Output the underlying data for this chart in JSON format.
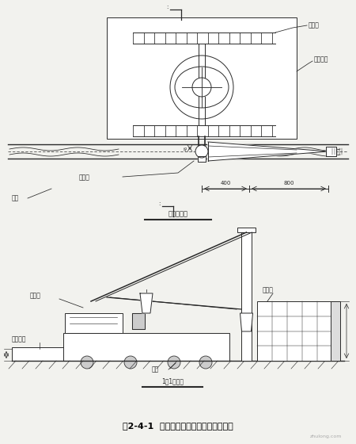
{
  "title": "图2-4-1  抓斗与套管钒机相对位置示意图",
  "bg_color": "#f2f2ee",
  "line_color": "#2a2a2a",
  "label_zuankongzhan": "锂控站",
  "label_zuoyepingtai": "作业平台",
  "label_taoguan": "套管机",
  "label_yuandi": "元地",
  "top_section_label": "平面示意图",
  "bottom_section_label": "1－1剖面图",
  "dim_400": "400",
  "dim_800": "800"
}
